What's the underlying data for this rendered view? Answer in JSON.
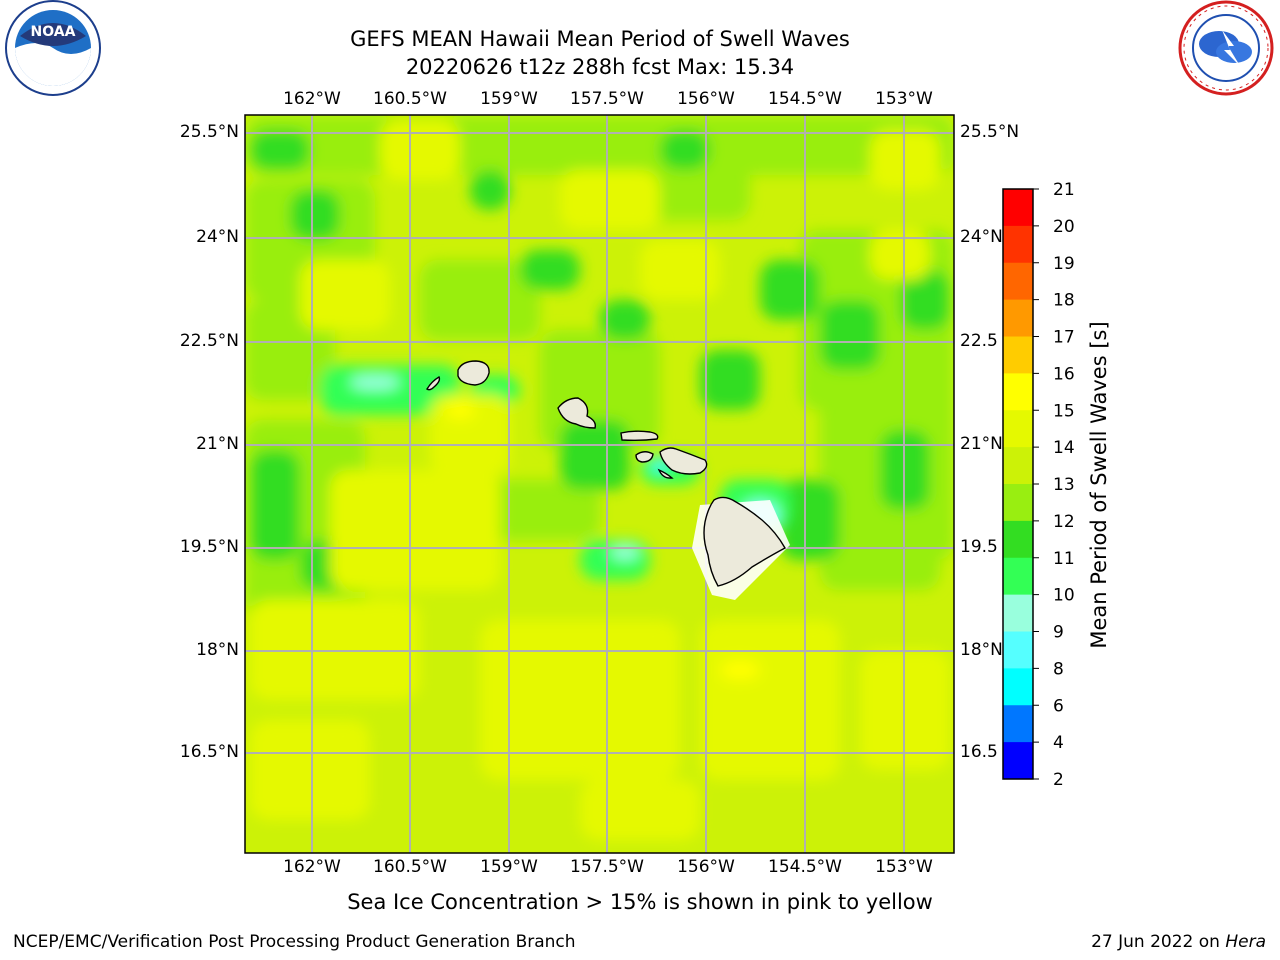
{
  "header": {
    "title_line1": "GEFS MEAN Hawaii Mean Period of Swell Waves",
    "title_line2": "20220626 t12z 288h fcst   Max: 15.34"
  },
  "logos": {
    "left": {
      "name": "noaa-logo",
      "text": "NOAA"
    },
    "right": {
      "name": "nws-logo",
      "text": "NATIONAL WEATHER SERVICE"
    }
  },
  "map": {
    "lon_labels": [
      "162°W",
      "160.5°W",
      "159°W",
      "157.5°W",
      "156°W",
      "154.5°W",
      "153°W"
    ],
    "lat_labels_left": [
      "25.5°N",
      "24°N",
      "22.5°N",
      "21°N",
      "19.5°N",
      "18°N",
      "16.5°N"
    ],
    "lat_labels_right": [
      "25.5°N",
      "24°N",
      "22.5",
      "21°N",
      "19.5",
      "18°N",
      "16.5"
    ],
    "land_color": "#eceadb",
    "base_color": "#ccf207"
  },
  "colorbar": {
    "label": "Mean Period of Swell Waves [s]",
    "ticks": [
      "21",
      "20",
      "19",
      "18",
      "17",
      "16",
      "15",
      "14",
      "13",
      "12",
      "11",
      "10",
      "9",
      "8",
      "6",
      "4",
      "2"
    ],
    "colors": [
      "#ff0000",
      "#ff3300",
      "#ff6600",
      "#ff9900",
      "#ffcc00",
      "#ffff00",
      "#e5f900",
      "#ccf207",
      "#99ee11",
      "#33dd22",
      "#33ff55",
      "#99ffdd",
      "#55ffff",
      "#00ffff",
      "#0077ff",
      "#0000ff"
    ]
  },
  "footer": {
    "note": "Sea Ice Concentration > 15% is shown in pink to yellow",
    "credit": "NCEP/EMC/Verification Post Processing Product Generation Branch",
    "date": "27 Jun 2022 on",
    "machine": "Hera"
  }
}
